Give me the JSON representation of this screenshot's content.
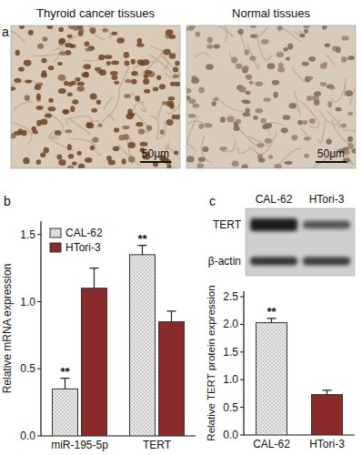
{
  "figure": {
    "panel_labels": [
      "a",
      "b",
      "c"
    ],
    "images": [
      {
        "caption": "Thyroid cancer tissues",
        "scale_bar": "50μm"
      },
      {
        "caption": "Normal tissues",
        "scale_bar": "50μm"
      }
    ],
    "blot": {
      "lanes": [
        "CAL-62",
        "HTori-3"
      ],
      "bands": [
        "TERT",
        "β-actin"
      ]
    }
  },
  "chart_data": [
    {
      "type": "bar",
      "y_label": "Relative mRNA expression",
      "categories": [
        "miR-195-5p",
        "TERT"
      ],
      "series": [
        {
          "name": "CAL-62",
          "color": "#ececec",
          "values": [
            0.35,
            1.35
          ],
          "errors": [
            0.08,
            0.07
          ],
          "significance": [
            "**",
            "**"
          ]
        },
        {
          "name": "HTori-3",
          "color": "#8b2a2a",
          "values": [
            1.1,
            0.85
          ],
          "errors": [
            0.15,
            0.08
          ]
        }
      ],
      "ylim": [
        0,
        1.6
      ],
      "yticks": [
        {
          "value": 0,
          "label": "0.0"
        },
        0.5,
        {
          "value": 1,
          "label": "1.0"
        },
        1.5
      ],
      "legend": "upper left"
    },
    {
      "type": "bar",
      "y_label": "Relative TERT protein expression",
      "categories": [
        "CAL-62",
        "HTori-3"
      ],
      "values": [
        2.03,
        0.73
      ],
      "errors": [
        0.08,
        0.08
      ],
      "significance": [
        "**",
        null
      ],
      "colors": [
        "#ececec",
        "#8b2a2a"
      ],
      "ylim": [
        0,
        2.6
      ],
      "yticks": [
        {
          "value": 0,
          "label": "0.0"
        },
        0.5,
        {
          "value": 1,
          "label": "1.0"
        },
        1.5,
        {
          "value": 2,
          "label": "2.0"
        },
        2.5
      ]
    }
  ]
}
